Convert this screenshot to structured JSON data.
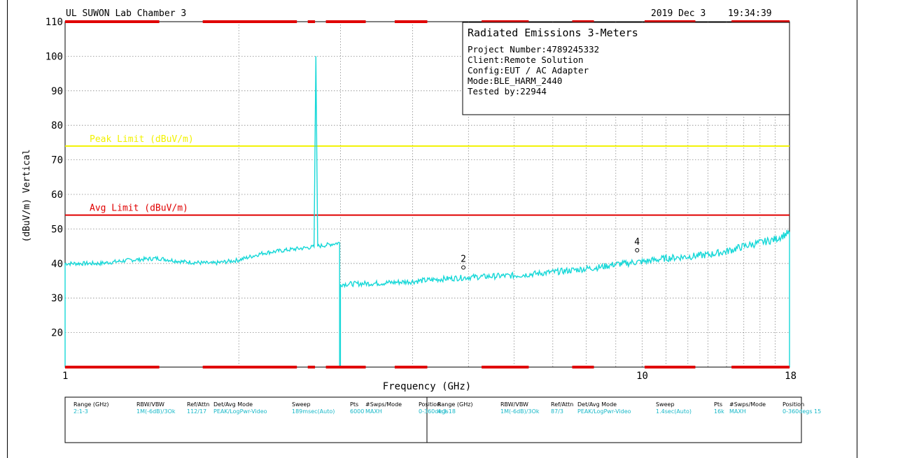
{
  "header": {
    "lab": "UL SUWON Lab Chamber 3",
    "date": "2019 Dec 3",
    "time": "19:34:39"
  },
  "info_box": {
    "title": "Radiated Emissions 3-Meters",
    "lines": [
      "Project Number:4789245332",
      "Client:Remote Solution",
      "Config:EUT / AC Adapter",
      "Mode:BLE_HARM_2440",
      "Tested by:22944"
    ]
  },
  "chart_data": {
    "type": "line",
    "title": "",
    "xlabel": "Frequency (GHz)",
    "ylabel": "(dBuV/m) Vertical",
    "x_scale": "log",
    "xlim": [
      1,
      18
    ],
    "ylim": [
      10,
      110
    ],
    "x_ticks": [
      1,
      10,
      18
    ],
    "y_ticks": [
      20,
      30,
      40,
      50,
      60,
      70,
      80,
      90,
      100,
      110
    ],
    "grid": true,
    "limits": [
      {
        "name": "Peak Limit (dBuV/m)",
        "value": 74,
        "color": "#f2f200"
      },
      {
        "name": "Avg Limit (dBuV/m)",
        "value": 54,
        "color": "#e00000"
      }
    ],
    "trace_color": "#17d8d8",
    "series": [
      {
        "x": [
          1.0,
          1.15,
          1.3,
          1.45,
          1.6,
          1.8,
          2.0,
          2.2,
          2.45,
          2.6,
          2.7,
          2.72,
          2.74,
          2.8,
          2.99
        ],
        "y": [
          40,
          40,
          41,
          41.5,
          40.5,
          40,
          41,
          43,
          44,
          44.5,
          44.8,
          100,
          45,
          45.2,
          46
        ]
      },
      {
        "x": [
          3.0,
          3.5,
          4.0,
          4.5,
          5.0,
          5.5,
          6.0,
          6.5,
          7.0,
          7.5,
          8.0,
          8.5,
          9.0,
          9.4,
          9.6,
          10.0,
          11.0,
          12.0,
          13.0,
          14.0,
          15.0,
          16.0,
          17.0,
          18.0
        ],
        "y": [
          34,
          34.3,
          34.8,
          35.5,
          36,
          36.3,
          36.5,
          37,
          37.5,
          38,
          38.5,
          39,
          39.8,
          40,
          40.3,
          40.5,
          41.5,
          42,
          42.5,
          43.5,
          45,
          46,
          47,
          49
        ]
      }
    ],
    "markers": [
      {
        "label": "2",
        "x": 4.9,
        "y": 36
      },
      {
        "label": "4",
        "x": 9.8,
        "y": 41
      }
    ]
  },
  "settings_table": {
    "headers": [
      "Range (GHz)",
      "RBW/VBW",
      "Ref/Attn",
      "Det/Avg Mode",
      "Sweep",
      "Pts",
      "#Swps/Mode",
      "Position"
    ],
    "rows": [
      [
        "2:1-3",
        "1M(-6dB)/3Ok",
        "112/17",
        "PEAK/LogPwr-Video",
        "189msec(Auto)",
        "6000",
        "MAXH",
        "0-360degs"
      ],
      [
        "4:3-18",
        "1M(-6dB)/3Ok",
        "87/3",
        "PEAK/LogPwr-Video",
        "1.4sec(Auto)",
        "16k",
        "MAXH",
        "0-360degs 15"
      ]
    ]
  }
}
